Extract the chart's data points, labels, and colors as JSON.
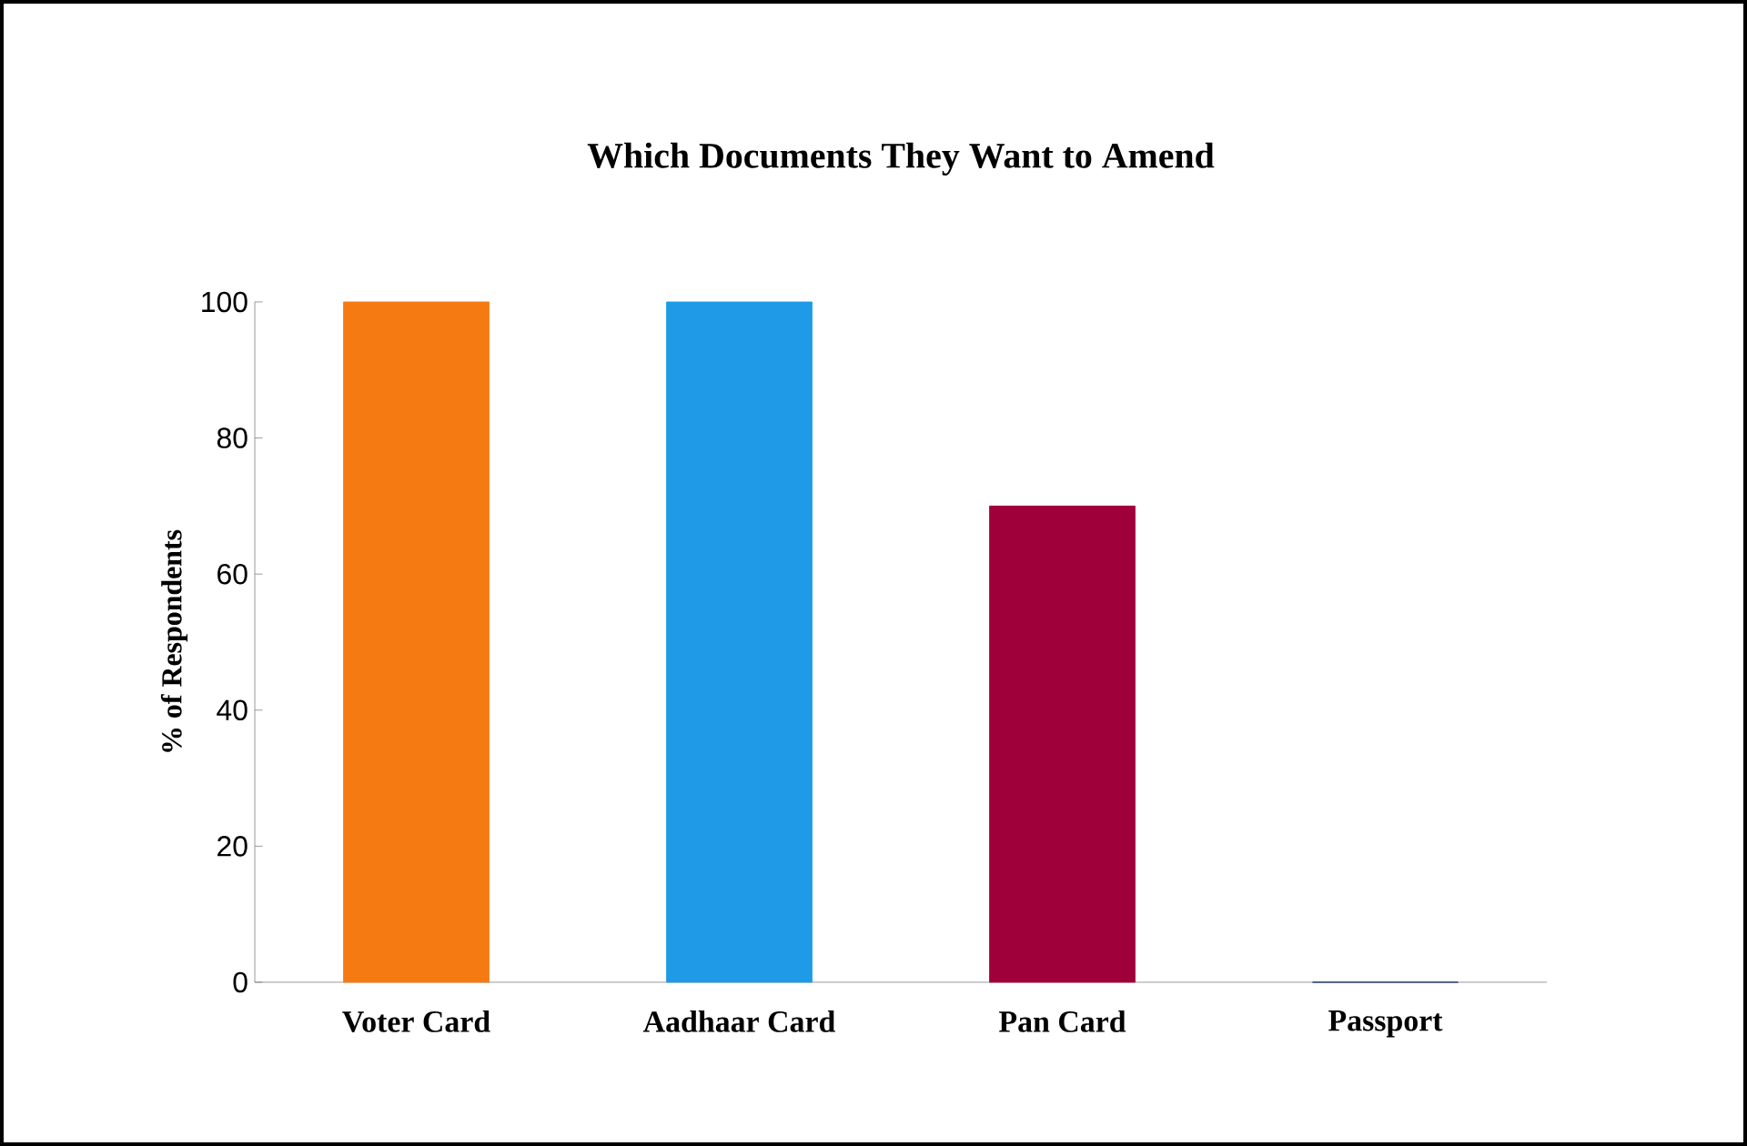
{
  "chart_data": {
    "type": "bar",
    "title": "Which Documents They Want to Amend",
    "ylabel": "% of Respondents",
    "categories": [
      "Voter Card",
      "Aadhaar Card",
      "Pan Card",
      "Passport"
    ],
    "values": [
      100,
      100,
      70,
      0
    ],
    "colors": [
      "#f57a12",
      "#1e9ae6",
      "#a0003a",
      "#0c2a60"
    ],
    "ylim": [
      0,
      100
    ],
    "yticks": [
      0,
      20,
      40,
      60,
      80,
      100
    ]
  }
}
